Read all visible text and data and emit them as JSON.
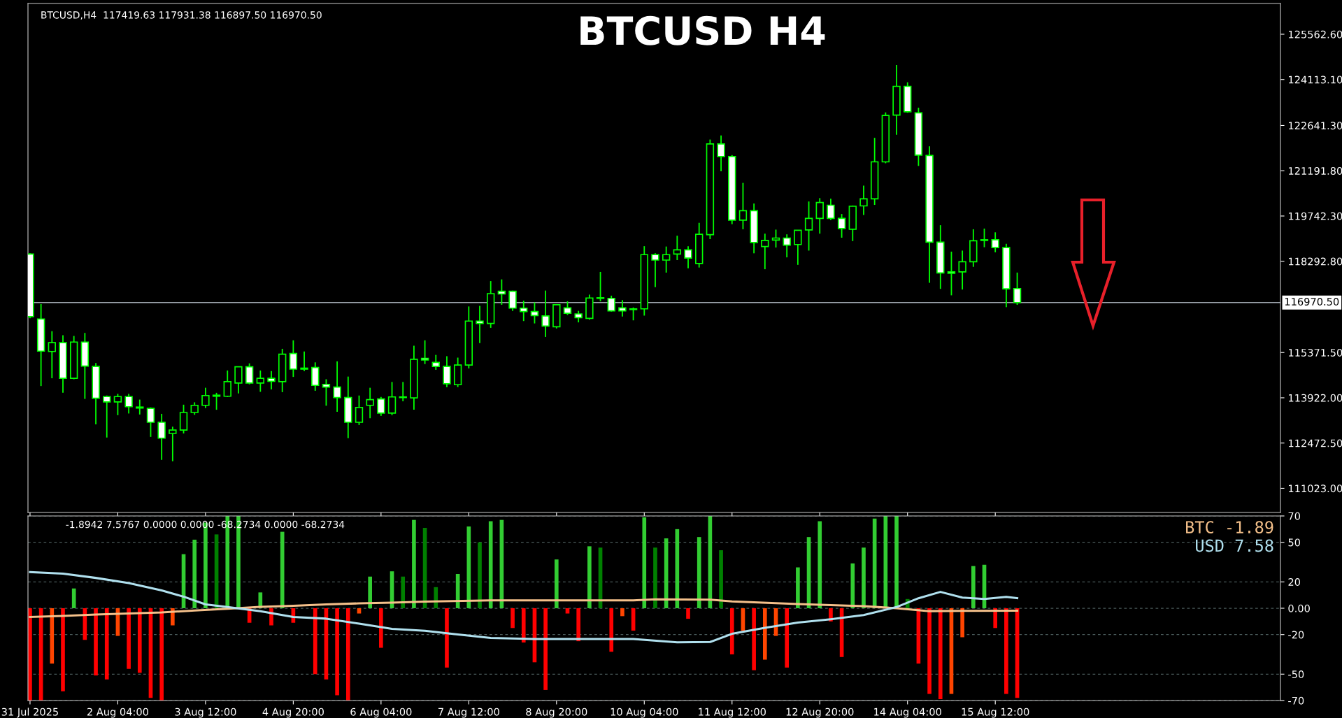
{
  "chart_data": [
    {
      "type": "candlestick",
      "title": "BTCUSD H4",
      "subtitle": "BTCUSD,H4  117419.63 117931.38 116897.50 116970.50",
      "color": "#00ff00",
      "x": [
        "2025-07-31T20:00",
        "2025-08-01T00:00",
        "2025-08-01T04:00",
        "2025-08-01T08:00",
        "2025-08-01T12:00",
        "2025-08-01T16:00",
        "2025-08-01T20:00",
        "2025-08-02T00:00",
        "2025-08-02T04:00",
        "2025-08-02T08:00",
        "2025-08-02T12:00",
        "2025-08-02T16:00",
        "2025-08-02T20:00",
        "2025-08-03T00:00",
        "2025-08-03T04:00",
        "2025-08-03T08:00",
        "2025-08-03T12:00",
        "2025-08-03T16:00",
        "2025-08-03T20:00",
        "2025-08-04T00:00",
        "2025-08-04T04:00",
        "2025-08-04T08:00",
        "2025-08-04T12:00",
        "2025-08-04T16:00",
        "2025-08-04T20:00",
        "2025-08-05T00:00",
        "2025-08-05T04:00",
        "2025-08-05T08:00",
        "2025-08-05T12:00",
        "2025-08-05T16:00",
        "2025-08-05T20:00",
        "2025-08-06T00:00",
        "2025-08-06T04:00",
        "2025-08-06T08:00",
        "2025-08-06T12:00",
        "2025-08-06T16:00",
        "2025-08-06T20:00",
        "2025-08-07T00:00",
        "2025-08-07T04:00",
        "2025-08-07T08:00",
        "2025-08-07T12:00",
        "2025-08-07T16:00",
        "2025-08-07T20:00",
        "2025-08-08T00:00",
        "2025-08-08T04:00",
        "2025-08-08T08:00",
        "2025-08-08T12:00",
        "2025-08-08T16:00",
        "2025-08-08T20:00",
        "2025-08-09T00:00",
        "2025-08-09T04:00",
        "2025-08-09T08:00",
        "2025-08-09T12:00",
        "2025-08-09T16:00",
        "2025-08-09T20:00",
        "2025-08-10T00:00",
        "2025-08-10T04:00",
        "2025-08-10T08:00",
        "2025-08-10T12:00",
        "2025-08-10T16:00",
        "2025-08-10T20:00",
        "2025-08-11T00:00",
        "2025-08-11T04:00",
        "2025-08-11T08:00",
        "2025-08-11T12:00",
        "2025-08-11T16:00",
        "2025-08-11T20:00",
        "2025-08-12T00:00",
        "2025-08-12T04:00",
        "2025-08-12T08:00",
        "2025-08-12T12:00",
        "2025-08-12T16:00",
        "2025-08-12T20:00",
        "2025-08-13T00:00",
        "2025-08-13T04:00",
        "2025-08-13T08:00",
        "2025-08-13T12:00",
        "2025-08-13T16:00",
        "2025-08-13T20:00",
        "2025-08-14T00:00",
        "2025-08-14T04:00",
        "2025-08-14T08:00",
        "2025-08-14T12:00",
        "2025-08-14T16:00",
        "2025-08-14T20:00",
        "2025-08-15T00:00",
        "2025-08-15T04:00",
        "2025-08-15T08:00",
        "2025-08-15T12:00",
        "2025-08-15T16:00",
        "2025-08-15T20:00"
      ],
      "ohlc": [
        [
          118526,
          118550,
          116470,
          116520
        ],
        [
          116445,
          116922,
          114298,
          115415
        ],
        [
          115404,
          116054,
          114547,
          115686
        ],
        [
          115686,
          115924,
          114081,
          114547
        ],
        [
          114547,
          115902,
          114515,
          115707
        ],
        [
          115707,
          115999,
          113886,
          114937
        ],
        [
          114926,
          115035,
          113073,
          113906
        ],
        [
          113961,
          113994,
          112649,
          113788
        ],
        [
          113788,
          114048,
          113365,
          113961
        ],
        [
          113961,
          114048,
          113419,
          113636
        ],
        [
          113625,
          113864,
          113386,
          113593
        ],
        [
          113582,
          113614,
          112671,
          113137
        ],
        [
          113137,
          113408,
          111934,
          112628
        ],
        [
          112779,
          112996,
          111890,
          112888
        ],
        [
          112888,
          113701,
          112779,
          113452
        ],
        [
          113452,
          113777,
          113376,
          113680
        ],
        [
          113680,
          114243,
          113593,
          113994
        ],
        [
          113972,
          114081,
          113538,
          114005
        ],
        [
          113972,
          114796,
          113950,
          114438
        ],
        [
          114395,
          114915,
          114059,
          114915
        ],
        [
          114915,
          115024,
          114352,
          114395
        ],
        [
          114395,
          114796,
          114113,
          114547
        ],
        [
          114547,
          114775,
          114189,
          114449
        ],
        [
          114438,
          115490,
          114102,
          115317
        ],
        [
          115339,
          115762,
          114590,
          114840
        ],
        [
          114872,
          115403,
          114775,
          114840
        ],
        [
          114893,
          115056,
          114146,
          114319
        ],
        [
          114352,
          114515,
          113668,
          114265
        ],
        [
          114265,
          115089,
          113473,
          113929
        ],
        [
          113929,
          114601,
          112628,
          113137
        ],
        [
          113137,
          113994,
          113051,
          113614
        ],
        [
          113680,
          114243,
          113267,
          113864
        ],
        [
          113886,
          113950,
          113343,
          113430
        ],
        [
          113430,
          114428,
          113365,
          113950
        ],
        [
          113929,
          114428,
          113810,
          113950
        ],
        [
          113918,
          115588,
          113538,
          115154
        ],
        [
          115186,
          115762,
          115002,
          115132
        ],
        [
          115056,
          115295,
          114818,
          114926
        ],
        [
          114926,
          115252,
          114265,
          114373
        ],
        [
          114341,
          115208,
          114265,
          114970
        ],
        [
          114970,
          116846,
          114861,
          116379
        ],
        [
          116379,
          116867,
          115674,
          116303
        ],
        [
          116303,
          117658,
          116162,
          117257
        ],
        [
          117333,
          117713,
          116900,
          117246
        ],
        [
          117333,
          117354,
          116705,
          116792
        ],
        [
          116792,
          117030,
          116379,
          116683
        ],
        [
          116683,
          116976,
          116303,
          116553
        ],
        [
          116542,
          117355,
          115870,
          116217
        ],
        [
          116195,
          116900,
          116141,
          116900
        ],
        [
          116802,
          117009,
          116575,
          116629
        ],
        [
          116607,
          116705,
          116336,
          116488
        ],
        [
          116466,
          117225,
          116423,
          117116
        ],
        [
          117116,
          117952,
          117009,
          117105
        ],
        [
          117105,
          117192,
          116683,
          116705
        ],
        [
          116802,
          117052,
          116521,
          116705
        ],
        [
          116770,
          116813,
          116401,
          116748
        ],
        [
          116770,
          118776,
          116553,
          118505
        ],
        [
          118505,
          118548,
          117464,
          118331
        ],
        [
          118331,
          118765,
          117930,
          118505
        ],
        [
          118526,
          119112,
          118331,
          118657
        ],
        [
          118657,
          118776,
          118071,
          118396
        ],
        [
          118223,
          119524,
          118093,
          119155
        ],
        [
          119144,
          122191,
          119003,
          122050
        ],
        [
          122050,
          122321,
          121172,
          121649
        ],
        [
          121649,
          121693,
          119481,
          119611
        ],
        [
          119611,
          120803,
          119318,
          119914
        ],
        [
          119914,
          120142,
          118548,
          118895
        ],
        [
          118765,
          119177,
          118038,
          118960
        ],
        [
          118971,
          119307,
          118733,
          119036
        ],
        [
          119036,
          119155,
          118418,
          118809
        ],
        [
          118830,
          119285,
          118179,
          119285
        ],
        [
          119296,
          120207,
          118635,
          119665
        ],
        [
          119665,
          120316,
          119177,
          120175
        ],
        [
          120088,
          120294,
          119611,
          119665
        ],
        [
          119665,
          119806,
          119047,
          119340
        ],
        [
          119318,
          120077,
          118939,
          120055
        ],
        [
          120066,
          120716,
          119773,
          120294
        ],
        [
          120294,
          122245,
          120099,
          121476
        ],
        [
          121476,
          123059,
          121432,
          122961
        ],
        [
          122972,
          124577,
          122343,
          123894
        ],
        [
          123894,
          124024,
          123048,
          123080
        ],
        [
          123048,
          123210,
          121346,
          121693
        ],
        [
          121682,
          121974,
          117605,
          118906
        ],
        [
          118906,
          119448,
          117409,
          117919
        ],
        [
          117952,
          118602,
          117203,
          117908
        ],
        [
          117952,
          118635,
          117388,
          118277
        ],
        [
          118277,
          119318,
          118114,
          118949
        ],
        [
          118982,
          119340,
          118743,
          118960
        ],
        [
          118982,
          119220,
          118581,
          118733
        ],
        [
          118733,
          118852,
          116824,
          117409
        ],
        [
          117419.63,
          117931.38,
          116897.5,
          116970.5
        ]
      ],
      "xlim": [
        "2025-07-31T19:15",
        "2025-08-19T20:00"
      ],
      "xticks": [
        {
          "value": "2025-07-31T20:00",
          "label": null
        },
        {
          "value": "2025-08-02T04:00",
          "label": null
        },
        {
          "value": "2025-08-03T12:00",
          "label": null
        },
        {
          "value": "2025-08-04T20:00",
          "label": null
        },
        {
          "value": "2025-08-06T04:00",
          "label": null
        },
        {
          "value": "2025-08-07T12:00",
          "label": null
        },
        {
          "value": "2025-08-08T20:00",
          "label": null
        },
        {
          "value": "2025-08-10T04:00",
          "label": null
        },
        {
          "value": "2025-08-11T12:00",
          "label": null
        },
        {
          "value": "2025-08-12T20:00",
          "label": null
        },
        {
          "value": "2025-08-14T04:00",
          "label": null
        },
        {
          "value": "2025-08-15T12:00",
          "label": null
        }
      ],
      "ylim": [
        110250,
        126547
      ],
      "yticks": [
        {
          "value": 111023,
          "label": "111023.00"
        },
        {
          "value": 112472.5,
          "label": "112472.50"
        },
        {
          "value": 113922,
          "label": "113922.00"
        },
        {
          "value": 115371.5,
          "label": "115371.50"
        },
        {
          "value": 118292.8,
          "label": "118292.80"
        },
        {
          "value": 119742.3,
          "label": "119742.30"
        },
        {
          "value": 121191.8,
          "label": "121191.80"
        },
        {
          "value": 122641.3,
          "label": "122641.30"
        },
        {
          "value": 124113.1,
          "label": "124113.10"
        },
        {
          "value": 125562.6,
          "label": "125562.60"
        }
      ],
      "ref_lines": [
        {
          "axis": "y",
          "value": 116970.5,
          "label": "116970.50",
          "color": "#a0a8b0"
        }
      ],
      "tick_labels": "y"
    },
    {
      "type": "bar",
      "title": "-1.8942 7.5767 0.0000 0.0000 -68.2734 0.0000 -68.2734",
      "x": [
        "2025-07-31T20:00",
        "2025-08-01T00:00",
        "2025-08-01T04:00",
        "2025-08-01T08:00",
        "2025-08-01T12:00",
        "2025-08-01T16:00",
        "2025-08-01T20:00",
        "2025-08-02T00:00",
        "2025-08-02T04:00",
        "2025-08-02T08:00",
        "2025-08-02T12:00",
        "2025-08-02T16:00",
        "2025-08-02T20:00",
        "2025-08-03T00:00",
        "2025-08-03T04:00",
        "2025-08-03T08:00",
        "2025-08-03T12:00",
        "2025-08-03T16:00",
        "2025-08-03T20:00",
        "2025-08-04T00:00",
        "2025-08-04T04:00",
        "2025-08-04T08:00",
        "2025-08-04T12:00",
        "2025-08-04T16:00",
        "2025-08-04T20:00",
        "2025-08-05T00:00",
        "2025-08-05T04:00",
        "2025-08-05T08:00",
        "2025-08-05T12:00",
        "2025-08-05T16:00",
        "2025-08-05T20:00",
        "2025-08-06T00:00",
        "2025-08-06T04:00",
        "2025-08-06T08:00",
        "2025-08-06T12:00",
        "2025-08-06T16:00",
        "2025-08-06T20:00",
        "2025-08-07T00:00",
        "2025-08-07T04:00",
        "2025-08-07T08:00",
        "2025-08-07T12:00",
        "2025-08-07T16:00",
        "2025-08-07T20:00",
        "2025-08-08T00:00",
        "2025-08-08T04:00",
        "2025-08-08T08:00",
        "2025-08-08T12:00",
        "2025-08-08T16:00",
        "2025-08-08T20:00",
        "2025-08-09T00:00",
        "2025-08-09T04:00",
        "2025-08-09T08:00",
        "2025-08-09T12:00",
        "2025-08-09T16:00",
        "2025-08-09T20:00",
        "2025-08-10T00:00",
        "2025-08-10T04:00",
        "2025-08-10T08:00",
        "2025-08-10T12:00",
        "2025-08-10T16:00",
        "2025-08-10T20:00",
        "2025-08-11T00:00",
        "2025-08-11T04:00",
        "2025-08-11T08:00",
        "2025-08-11T12:00",
        "2025-08-11T16:00",
        "2025-08-11T20:00",
        "2025-08-12T00:00",
        "2025-08-12T04:00",
        "2025-08-12T08:00",
        "2025-08-12T12:00",
        "2025-08-12T16:00",
        "2025-08-12T20:00",
        "2025-08-13T00:00",
        "2025-08-13T04:00",
        "2025-08-13T08:00",
        "2025-08-13T12:00",
        "2025-08-13T16:00",
        "2025-08-13T20:00",
        "2025-08-14T00:00",
        "2025-08-14T04:00",
        "2025-08-14T08:00",
        "2025-08-14T12:00",
        "2025-08-14T16:00",
        "2025-08-14T20:00",
        "2025-08-15T00:00",
        "2025-08-15T04:00",
        "2025-08-15T08:00",
        "2025-08-15T12:00",
        "2025-08-15T16:00",
        "2025-08-15T20:00"
      ],
      "series": [
        {
          "type": "bar",
          "values": [
            -70,
            -70,
            -42,
            -63,
            15,
            -24,
            -51,
            -54,
            -21,
            -46,
            -49,
            -68,
            -70,
            -13,
            41,
            52,
            65,
            56,
            70,
            70,
            -11,
            12,
            -13,
            58,
            -11,
            null,
            -50,
            -54,
            -66,
            -70,
            -4,
            24,
            -30,
            28,
            24,
            67,
            61,
            16,
            -45,
            26,
            62,
            50,
            66,
            67,
            -15,
            -26,
            -41,
            -62,
            37,
            -4,
            -25,
            47,
            46,
            -33,
            -6,
            -17,
            69,
            46,
            53,
            60,
            -8,
            54,
            70,
            44,
            -35,
            -17,
            -47,
            -39,
            -21,
            -45,
            31,
            54,
            66,
            -10,
            -37,
            34,
            46,
            68,
            70,
            70,
            7,
            -42,
            -65,
            -69,
            -65,
            -22,
            32,
            33,
            -15,
            -65,
            -68
          ],
          "colors": [
            "#ff0000",
            "#ff0000",
            "#ff4500",
            "#ff0000",
            "#32cd32",
            "#ff0000",
            "#ff0000",
            "#ff0000",
            "#ff4500",
            "#ff0000",
            "#ff0000",
            "#ff0000",
            "#ff0000",
            "#ff4500",
            "#32cd32",
            "#32cd32",
            "#32cd32",
            "#008000",
            "#32cd32",
            "#32cd32",
            "#ff0000",
            "#32cd32",
            "#ff0000",
            "#32cd32",
            "#ff0000",
            "#32cd32",
            "#ff0000",
            "#ff0000",
            "#ff0000",
            "#ff0000",
            "#ff4500",
            "#32cd32",
            "#ff0000",
            "#32cd32",
            "#008000",
            "#32cd32",
            "#008000",
            "#008000",
            "#ff0000",
            "#32cd32",
            "#32cd32",
            "#008000",
            "#32cd32",
            "#32cd32",
            "#ff0000",
            "#ff0000",
            "#ff0000",
            "#ff0000",
            "#32cd32",
            "#ff0000",
            "#ff0000",
            "#32cd32",
            "#008000",
            "#ff0000",
            "#ff4500",
            "#ff0000",
            "#32cd32",
            "#008000",
            "#32cd32",
            "#32cd32",
            "#ff0000",
            "#32cd32",
            "#32cd32",
            "#008000",
            "#ff0000",
            "#ff4500",
            "#ff0000",
            "#ff4500",
            "#ff4500",
            "#ff0000",
            "#32cd32",
            "#32cd32",
            "#32cd32",
            "#ff0000",
            "#ff0000",
            "#32cd32",
            "#32cd32",
            "#32cd32",
            "#32cd32",
            "#32cd32",
            "#008000",
            "#ff0000",
            "#ff0000",
            "#ff0000",
            "#ff4500",
            "#ff4500",
            "#32cd32",
            "#32cd32",
            "#ff0000",
            "#ff0000",
            "#ff0000"
          ]
        },
        {
          "type": "line",
          "name": "BTC",
          "color": "#f4c08a",
          "x": [
            "2025-07-31T20:00",
            "2025-08-01T08:00",
            "2025-08-01T20:00",
            "2025-08-02T08:00",
            "2025-08-02T20:00",
            "2025-08-03T08:00",
            "2025-08-03T20:00",
            "2025-08-04T08:00",
            "2025-08-04T20:00",
            "2025-08-05T08:00",
            "2025-08-05T20:00",
            "2025-08-06T08:00",
            "2025-08-06T20:00",
            "2025-08-07T20:00",
            "2025-08-08T16:00",
            "2025-08-10T00:00",
            "2025-08-10T08:00",
            "2025-08-11T04:00",
            "2025-08-11T12:00",
            "2025-08-12T12:00",
            "2025-08-13T12:00",
            "2025-08-14T00:00",
            "2025-08-14T12:00",
            "2025-08-15T00:00",
            "2025-08-15T20:00"
          ],
          "values": [
            -6.6,
            -5.8,
            -4.8,
            -4.0,
            -3.2,
            -1.7,
            -0.4,
            1.1,
            1.9,
            2.9,
            3.7,
            4.2,
            5.0,
            6.0,
            6.0,
            6.0,
            6.8,
            6.5,
            5.2,
            3.2,
            1.6,
            0,
            -2.2,
            -2.0,
            -1.9
          ]
        },
        {
          "type": "line",
          "name": "USD",
          "color": "#b0e0ee",
          "x": [
            "2025-07-31T20:00",
            "2025-08-01T08:00",
            "2025-08-01T20:00",
            "2025-08-02T08:00",
            "2025-08-02T20:00",
            "2025-08-03T04:00",
            "2025-08-03T12:00",
            "2025-08-03T20:00",
            "2025-08-04T08:00",
            "2025-08-04T20:00",
            "2025-08-05T08:00",
            "2025-08-05T20:00",
            "2025-08-06T08:00",
            "2025-08-06T20:00",
            "2025-08-07T08:00",
            "2025-08-07T20:00",
            "2025-08-08T12:00",
            "2025-08-09T00:00",
            "2025-08-10T00:00",
            "2025-08-10T16:00",
            "2025-08-11T04:00",
            "2025-08-11T12:00",
            "2025-08-12T00:00",
            "2025-08-12T12:00",
            "2025-08-13T00:00",
            "2025-08-13T12:00",
            "2025-08-14T00:00",
            "2025-08-14T08:00",
            "2025-08-14T16:00",
            "2025-08-15T00:00",
            "2025-08-15T08:00",
            "2025-08-15T16:00",
            "2025-08-15T20:00"
          ],
          "values": [
            27.4,
            26.3,
            23.0,
            19.1,
            13.5,
            8.8,
            2.9,
            0.9,
            -2.2,
            -6.6,
            -7.9,
            -11.7,
            -15.6,
            -17.1,
            -19.9,
            -22.5,
            -23.3,
            -23.3,
            -23.3,
            -25.9,
            -25.6,
            -19.4,
            -14.8,
            -10.9,
            -8.3,
            -5.2,
            0.9,
            7.6,
            12.4,
            8.1,
            7.0,
            8.6,
            7.6
          ]
        }
      ],
      "annotations": [
        "-1.89",
        "7.58"
      ],
      "xlim": [
        "2025-07-31T19:15",
        "2025-08-19T20:00"
      ],
      "xticks": [
        {
          "value": "2025-07-31T20:00",
          "label": "31 Jul 2025"
        },
        {
          "value": "2025-08-02T04:00",
          "label": "2 Aug 04:00"
        },
        {
          "value": "2025-08-03T12:00",
          "label": "3 Aug 12:00"
        },
        {
          "value": "2025-08-04T20:00",
          "label": "4 Aug 20:00"
        },
        {
          "value": "2025-08-06T04:00",
          "label": "6 Aug 04:00"
        },
        {
          "value": "2025-08-07T12:00",
          "label": "7 Aug 12:00"
        },
        {
          "value": "2025-08-08T20:00",
          "label": "8 Aug 20:00"
        },
        {
          "value": "2025-08-10T04:00",
          "label": "10 Aug 04:00"
        },
        {
          "value": "2025-08-11T12:00",
          "label": "11 Aug 12:00"
        },
        {
          "value": "2025-08-12T20:00",
          "label": "12 Aug 20:00"
        },
        {
          "value": "2025-08-14T04:00",
          "label": "14 Aug 04:00"
        },
        {
          "value": "2025-08-15T12:00",
          "label": "15 Aug 12:00"
        }
      ],
      "ylim": [
        -70,
        70
      ],
      "yticks": [
        -70,
        -50,
        -20,
        {
          "value": 0,
          "label": "0.00"
        },
        20,
        50,
        70
      ],
      "grid": "y"
    }
  ]
}
